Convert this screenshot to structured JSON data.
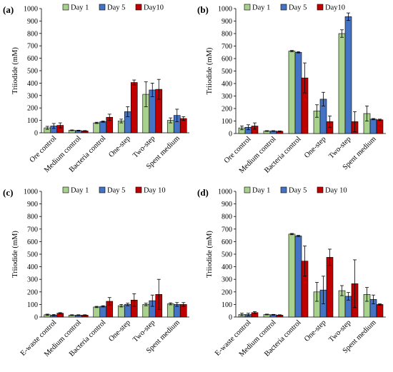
{
  "figure": {
    "colors": {
      "day1": "#a9d18e",
      "day5": "#4472c4",
      "day10": "#c00000",
      "bar_stroke": "#000000"
    }
  },
  "chart_data": [
    {
      "panel": "(a)",
      "type": "bar",
      "ylabel": "Triiodide (mM)",
      "ylim": [
        0,
        1000
      ],
      "yticks": [
        0,
        100,
        200,
        300,
        400,
        500,
        600,
        700,
        800,
        900,
        1000
      ],
      "categories": [
        "Ore control",
        "Medium control",
        "Bacteria control",
        "One-step",
        "Two-step",
        "Spent medium"
      ],
      "legend_position": "top",
      "series": [
        {
          "name": "Day 1",
          "values": [
            40,
            20,
            80,
            95,
            310,
            100
          ],
          "errors": [
            12,
            3,
            5,
            15,
            100,
            20
          ]
        },
        {
          "name": "Day 5",
          "values": [
            55,
            18,
            90,
            170,
            345,
            140
          ],
          "errors": [
            20,
            3,
            5,
            40,
            55,
            50
          ]
        },
        {
          "name": "Day10",
          "values": [
            60,
            15,
            125,
            405,
            350,
            115
          ],
          "errors": [
            20,
            3,
            25,
            20,
            80,
            15
          ]
        }
      ]
    },
    {
      "panel": "(b)",
      "type": "bar",
      "ylabel": "Triiodide (mM)",
      "ylim": [
        0,
        1000
      ],
      "yticks": [
        0,
        100,
        200,
        300,
        400,
        500,
        600,
        700,
        800,
        900,
        1000
      ],
      "categories": [
        "Ore control",
        "Medium control",
        "Bacteria control",
        "One-step",
        "Two-step",
        "Spent medium"
      ],
      "legend_position": "top",
      "series": [
        {
          "name": "Day 1",
          "values": [
            45,
            20,
            660,
            180,
            800,
            160
          ],
          "errors": [
            15,
            3,
            5,
            50,
            30,
            60
          ]
        },
        {
          "name": "Day 5",
          "values": [
            50,
            20,
            650,
            275,
            935,
            115
          ],
          "errors": [
            20,
            3,
            5,
            55,
            30,
            5
          ]
        },
        {
          "name": "Day10",
          "values": [
            60,
            18,
            445,
            95,
            95,
            110
          ],
          "errors": [
            25,
            3,
            120,
            45,
            80,
            5
          ]
        }
      ]
    },
    {
      "panel": "(c)",
      "type": "bar",
      "ylabel": "Triiodide (mM)",
      "ylim": [
        0,
        1000
      ],
      "yticks": [
        0,
        100,
        200,
        300,
        400,
        500,
        600,
        700,
        800,
        900,
        1000
      ],
      "categories": [
        "E-waste control",
        "Medium control",
        "Bacteria control",
        "One-step",
        "Two-step",
        "Spent medium"
      ],
      "legend_position": "top",
      "series": [
        {
          "name": "Day 1",
          "values": [
            18,
            15,
            80,
            90,
            100,
            105
          ],
          "errors": [
            5,
            3,
            5,
            10,
            10,
            8
          ]
        },
        {
          "name": "Day 5",
          "values": [
            15,
            15,
            85,
            100,
            130,
            100
          ],
          "errors": [
            5,
            3,
            5,
            10,
            45,
            15
          ]
        },
        {
          "name": "Day 10",
          "values": [
            30,
            15,
            125,
            135,
            180,
            100
          ],
          "errors": [
            5,
            3,
            30,
            50,
            120,
            15
          ]
        }
      ]
    },
    {
      "panel": "(d)",
      "type": "bar",
      "ylabel": "Triiodide (mM)",
      "ylim": [
        0,
        1000
      ],
      "yticks": [
        0,
        100,
        200,
        300,
        400,
        500,
        600,
        700,
        800,
        900,
        1000
      ],
      "categories": [
        "E-waste control",
        "Medium control",
        "Bacteria control",
        "One-step",
        "Two-step",
        "Spent medium"
      ],
      "legend_position": "top",
      "series": [
        {
          "name": "Day 1",
          "values": [
            20,
            20,
            660,
            200,
            210,
            180
          ],
          "errors": [
            10,
            3,
            5,
            75,
            40,
            55
          ]
        },
        {
          "name": "Day 5",
          "values": [
            20,
            18,
            645,
            215,
            165,
            140
          ],
          "errors": [
            10,
            3,
            5,
            110,
            30,
            35
          ]
        },
        {
          "name": "Day 10",
          "values": [
            35,
            15,
            445,
            475,
            265,
            100
          ],
          "errors": [
            8,
            3,
            120,
            65,
            190,
            5
          ]
        }
      ]
    }
  ]
}
